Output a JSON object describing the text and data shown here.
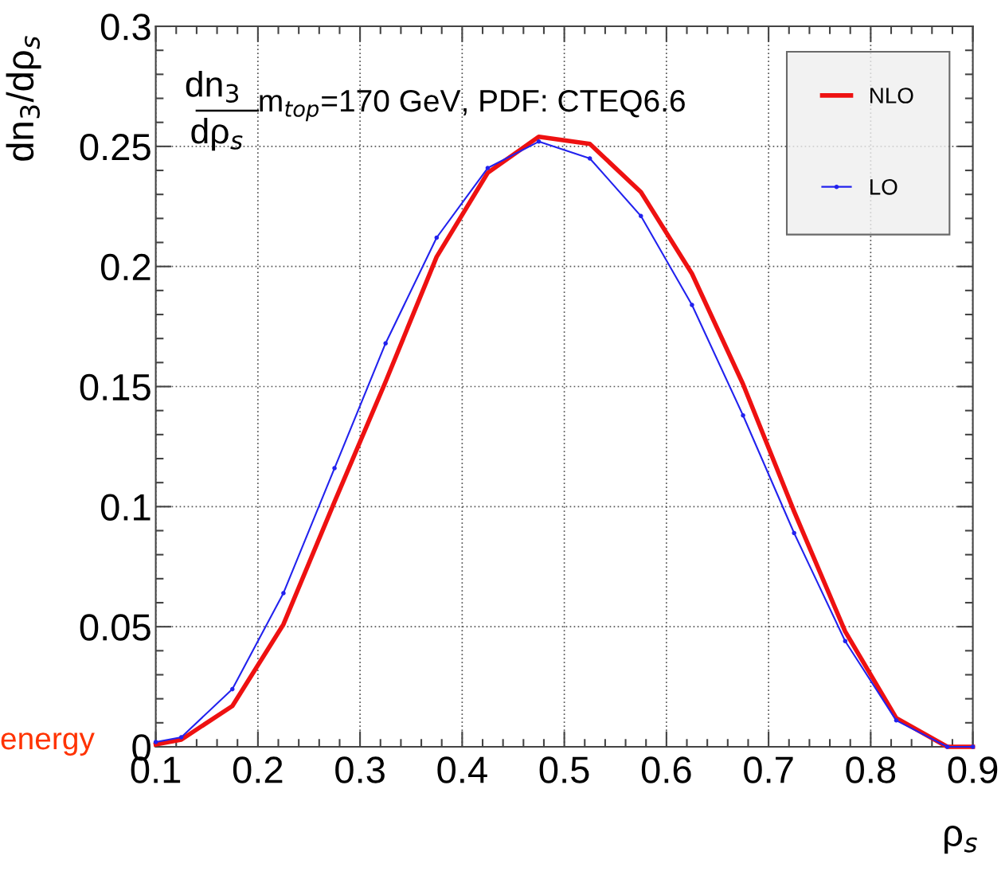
{
  "chart_data": {
    "type": "line",
    "xlabel": "ρ$_{s}$",
    "ylabel": "dn$_{3}$/dρ$_{s}$",
    "x": [
      0.1,
      0.125,
      0.175,
      0.225,
      0.275,
      0.325,
      0.375,
      0.425,
      0.475,
      0.525,
      0.575,
      0.625,
      0.675,
      0.725,
      0.775,
      0.825,
      0.875,
      0.9
    ],
    "series": [
      {
        "name": "NLO",
        "color": "#ee1111",
        "marker": "none",
        "values": [
          0.001,
          0.003,
          0.017,
          0.051,
          0.102,
          0.152,
          0.204,
          0.239,
          0.254,
          0.251,
          0.231,
          0.197,
          0.151,
          0.098,
          0.048,
          0.012,
          0,
          0
        ]
      },
      {
        "name": "LO",
        "color": "#2222ee",
        "marker": "circle",
        "values": [
          0.002,
          0.004,
          0.024,
          0.064,
          0.116,
          0.168,
          0.212,
          0.241,
          0.252,
          0.245,
          0.221,
          0.184,
          0.138,
          0.089,
          0.044,
          0.011,
          0,
          0
        ]
      }
    ],
    "xlim": [
      0.1,
      0.9
    ],
    "xticks": [
      0.1,
      0.2,
      0.3,
      0.4,
      0.5,
      0.6,
      0.7,
      0.8,
      0.9
    ],
    "ylim": [
      0,
      0.3
    ],
    "yticks": [
      0,
      0.05,
      0.1,
      0.15,
      0.2,
      0.25,
      0.3
    ],
    "grid": true,
    "legend": "top right",
    "line_style": "solid",
    "annotations": [
      "dn$_{3}$",
      "dρ$_{s}$",
      "m$_{top}$=170 GeV, PDF: CTEQ6.6",
      "energy"
    ]
  }
}
